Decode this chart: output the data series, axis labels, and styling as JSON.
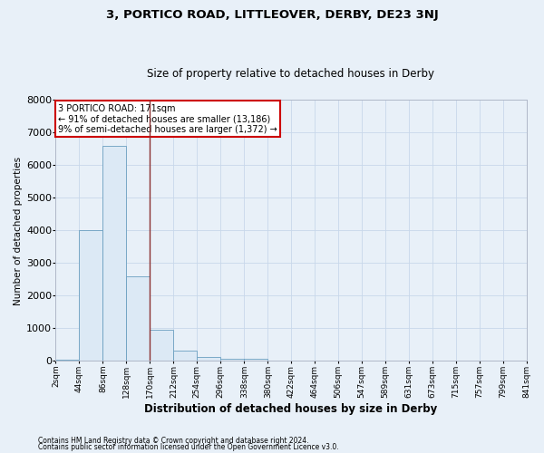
{
  "title1": "3, PORTICO ROAD, LITTLEOVER, DERBY, DE23 3NJ",
  "title2": "Size of property relative to detached houses in Derby",
  "xlabel": "Distribution of detached houses by size in Derby",
  "ylabel": "Number of detached properties",
  "footnote1": "Contains HM Land Registry data © Crown copyright and database right 2024.",
  "footnote2": "Contains public sector information licensed under the Open Government Licence v3.0.",
  "annotation_line1": "3 PORTICO ROAD: 171sqm",
  "annotation_line2": "← 91% of detached houses are smaller (13,186)",
  "annotation_line3": "9% of semi-detached houses are larger (1,372) →",
  "vline_x": 170,
  "bin_edges": [
    2,
    44,
    86,
    128,
    170,
    212,
    254,
    296,
    338,
    380,
    422,
    464,
    506,
    547,
    589,
    631,
    673,
    715,
    757,
    799,
    841
  ],
  "bin_labels": [
    "2sqm",
    "44sqm",
    "86sqm",
    "128sqm",
    "170sqm",
    "212sqm",
    "254sqm",
    "296sqm",
    "338sqm",
    "380sqm",
    "422sqm",
    "464sqm",
    "506sqm",
    "547sqm",
    "589sqm",
    "631sqm",
    "673sqm",
    "715sqm",
    "757sqm",
    "799sqm",
    "841sqm"
  ],
  "counts": [
    50,
    4000,
    6600,
    2600,
    950,
    310,
    115,
    60,
    55,
    5,
    5,
    2,
    1,
    0,
    0,
    0,
    0,
    0,
    0,
    0
  ],
  "bar_color": "#dce9f5",
  "bar_edge_color": "#6a9fc0",
  "vline_color": "#8b3030",
  "box_edge_color": "#cc0000",
  "box_face_color": "#ffffff",
  "grid_color": "#c8d8ea",
  "bg_color": "#e8f0f8",
  "ylim": [
    0,
    8000
  ],
  "yticks": [
    0,
    1000,
    2000,
    3000,
    4000,
    5000,
    6000,
    7000,
    8000
  ]
}
